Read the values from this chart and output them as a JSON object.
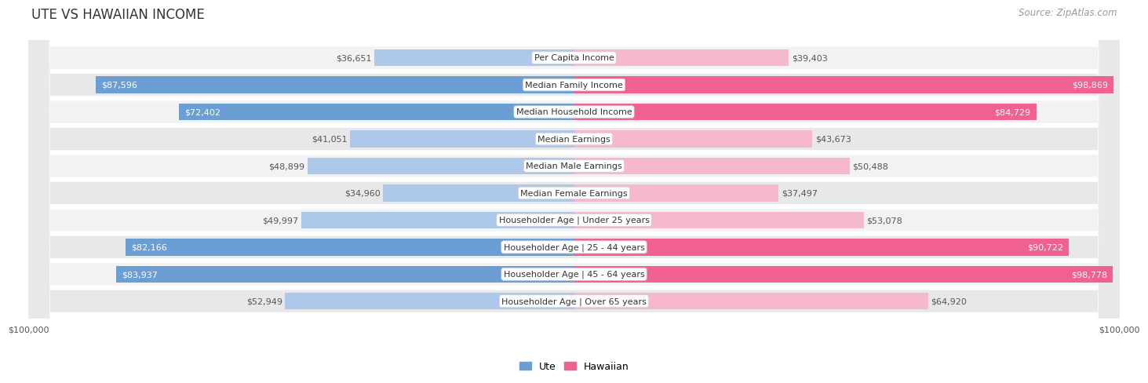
{
  "title": "UTE VS HAWAIIAN INCOME",
  "source": "Source: ZipAtlas.com",
  "categories": [
    "Per Capita Income",
    "Median Family Income",
    "Median Household Income",
    "Median Earnings",
    "Median Male Earnings",
    "Median Female Earnings",
    "Householder Age | Under 25 years",
    "Householder Age | 25 - 44 years",
    "Householder Age | 45 - 64 years",
    "Householder Age | Over 65 years"
  ],
  "ute_values": [
    36651,
    87596,
    72402,
    41051,
    48899,
    34960,
    49997,
    82166,
    83937,
    52949
  ],
  "hawaiian_values": [
    39403,
    98869,
    84729,
    43673,
    50488,
    37497,
    53078,
    90722,
    98778,
    64920
  ],
  "ute_labels": [
    "$36,651",
    "$87,596",
    "$72,402",
    "$41,051",
    "$48,899",
    "$34,960",
    "$49,997",
    "$82,166",
    "$83,937",
    "$52,949"
  ],
  "hawaiian_labels": [
    "$39,403",
    "$98,869",
    "$84,729",
    "$43,673",
    "$50,488",
    "$37,497",
    "$53,078",
    "$90,722",
    "$98,778",
    "$64,920"
  ],
  "max_value": 100000,
  "ute_color_light": "#adc8e8",
  "ute_color_dark": "#6b9fd4",
  "hawaiian_color_light": "#f5b8cf",
  "hawaiian_color_dark": "#f06090",
  "row_bg_even": "#f2f2f2",
  "row_bg_odd": "#e8e8e8",
  "background_color": "#ffffff",
  "title_fontsize": 12,
  "source_fontsize": 8.5,
  "bar_label_fontsize": 8,
  "category_fontsize": 8,
  "axis_label_fontsize": 8
}
